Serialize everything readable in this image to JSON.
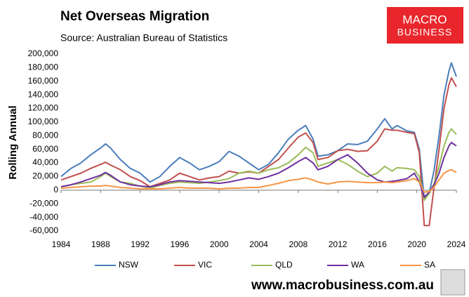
{
  "chart_data": {
    "type": "line",
    "title": "Net Overseas Migration",
    "subtitle": "Source: Australian Bureau of Statistics",
    "ylabel": "Rolling Annual",
    "x": [
      1984,
      1985,
      1986,
      1987,
      1988,
      1988.5,
      1989,
      1990,
      1991,
      1992,
      1993,
      1994,
      1995,
      1996,
      1997,
      1998,
      1999,
      2000,
      2001,
      2002,
      2003,
      2004,
      2005,
      2006,
      2007,
      2008,
      2008.75,
      2009.5,
      2010,
      2011,
      2012,
      2013,
      2014,
      2015,
      2016,
      2016.75,
      2017.5,
      2018,
      2019,
      2019.75,
      2020.25,
      2020.75,
      2021.25,
      2021.75,
      2022.25,
      2022.75,
      2023.25,
      2023.5,
      2024
    ],
    "series": [
      {
        "name": "NSW",
        "color": "#4a7ebb",
        "values": [
          20000,
          32000,
          40000,
          52000,
          62000,
          68000,
          62000,
          45000,
          32000,
          25000,
          12000,
          20000,
          35000,
          48000,
          40000,
          30000,
          35000,
          42000,
          57000,
          50000,
          40000,
          30000,
          38000,
          55000,
          75000,
          88000,
          95000,
          75000,
          50000,
          52000,
          58000,
          68000,
          67000,
          72000,
          90000,
          105000,
          90000,
          95000,
          87000,
          85000,
          60000,
          -12000,
          -5000,
          30000,
          80000,
          140000,
          175000,
          187000,
          167000
        ]
      },
      {
        "name": "VIC",
        "color": "#c0504d",
        "values": [
          15000,
          20000,
          25000,
          32000,
          38000,
          41000,
          37000,
          30000,
          20000,
          14000,
          5000,
          10000,
          15000,
          25000,
          20000,
          15000,
          18000,
          20000,
          28000,
          25000,
          27000,
          25000,
          35000,
          45000,
          62000,
          78000,
          84000,
          70000,
          45000,
          48000,
          58000,
          60000,
          57000,
          58000,
          72000,
          90000,
          88000,
          88000,
          85000,
          83000,
          55000,
          -52000,
          -52000,
          5000,
          60000,
          120000,
          155000,
          165000,
          152000
        ]
      },
      {
        "name": "QLD",
        "color": "#9bbb59",
        "values": [
          5000,
          8000,
          10000,
          12000,
          20000,
          25000,
          20000,
          12000,
          10000,
          6000,
          3000,
          7000,
          10000,
          12000,
          11000,
          10000,
          12000,
          14000,
          17000,
          25000,
          28000,
          25000,
          30000,
          33000,
          40000,
          52000,
          63000,
          55000,
          35000,
          40000,
          45000,
          38000,
          28000,
          20000,
          25000,
          35000,
          28000,
          33000,
          32000,
          30000,
          20000,
          -15000,
          -5000,
          10000,
          35000,
          65000,
          85000,
          90000,
          82000
        ]
      },
      {
        "name": "WA",
        "color": "#7030a0",
        "values": [
          5000,
          8000,
          12000,
          17000,
          22000,
          26000,
          22000,
          12000,
          8000,
          6000,
          5000,
          8000,
          12000,
          14000,
          13000,
          12000,
          11000,
          10000,
          12000,
          15000,
          18000,
          16000,
          20000,
          25000,
          33000,
          42000,
          48000,
          40000,
          30000,
          35000,
          45000,
          52000,
          40000,
          25000,
          15000,
          12000,
          13000,
          14000,
          17000,
          25000,
          12000,
          -10000,
          -3000,
          8000,
          25000,
          48000,
          65000,
          70000,
          65000
        ]
      },
      {
        "name": "SA",
        "color": "#f79646",
        "values": [
          3000,
          4000,
          5000,
          6000,
          6000,
          7000,
          6000,
          4000,
          3000,
          2000,
          2000,
          2000,
          3000,
          4000,
          3000,
          3000,
          3000,
          2000,
          3000,
          3000,
          4000,
          4000,
          7000,
          10000,
          14000,
          16000,
          18000,
          15000,
          12000,
          9000,
          12000,
          13000,
          12000,
          11000,
          11000,
          12000,
          11000,
          12000,
          14000,
          17000,
          12000,
          -3000,
          -2000,
          5000,
          15000,
          25000,
          29000,
          30000,
          26000
        ]
      }
    ],
    "xlim": [
      1984,
      2024
    ],
    "xticks": [
      1984,
      1988,
      1992,
      1996,
      2000,
      2004,
      2008,
      2012,
      2016,
      2020,
      2024
    ],
    "ylim": [
      -60000,
      200000
    ],
    "yticks": [
      {
        "value": -60000,
        "label": "-60,000"
      },
      {
        "value": -40000,
        "label": "-40,000"
      },
      {
        "value": -20000,
        "label": "-20,000"
      },
      0,
      {
        "value": 20000,
        "label": "20,000"
      },
      {
        "value": 40000,
        "label": "40,000"
      },
      {
        "value": 60000,
        "label": "60,000"
      },
      {
        "value": 80000,
        "label": "80,000"
      },
      {
        "value": 100000,
        "label": "100,000"
      },
      {
        "value": 120000,
        "label": "120,000"
      },
      {
        "value": 140000,
        "label": "140,000"
      },
      {
        "value": 160000,
        "label": "160,000"
      },
      {
        "value": 180000,
        "label": "180,000"
      },
      {
        "value": 200000,
        "label": "200,000"
      }
    ],
    "grid": false,
    "legend": "bottom"
  },
  "branding": {
    "logo_top": "MACRO",
    "logo_bottom": "BUSINESS",
    "website": "www.macrobusiness.com.au"
  }
}
